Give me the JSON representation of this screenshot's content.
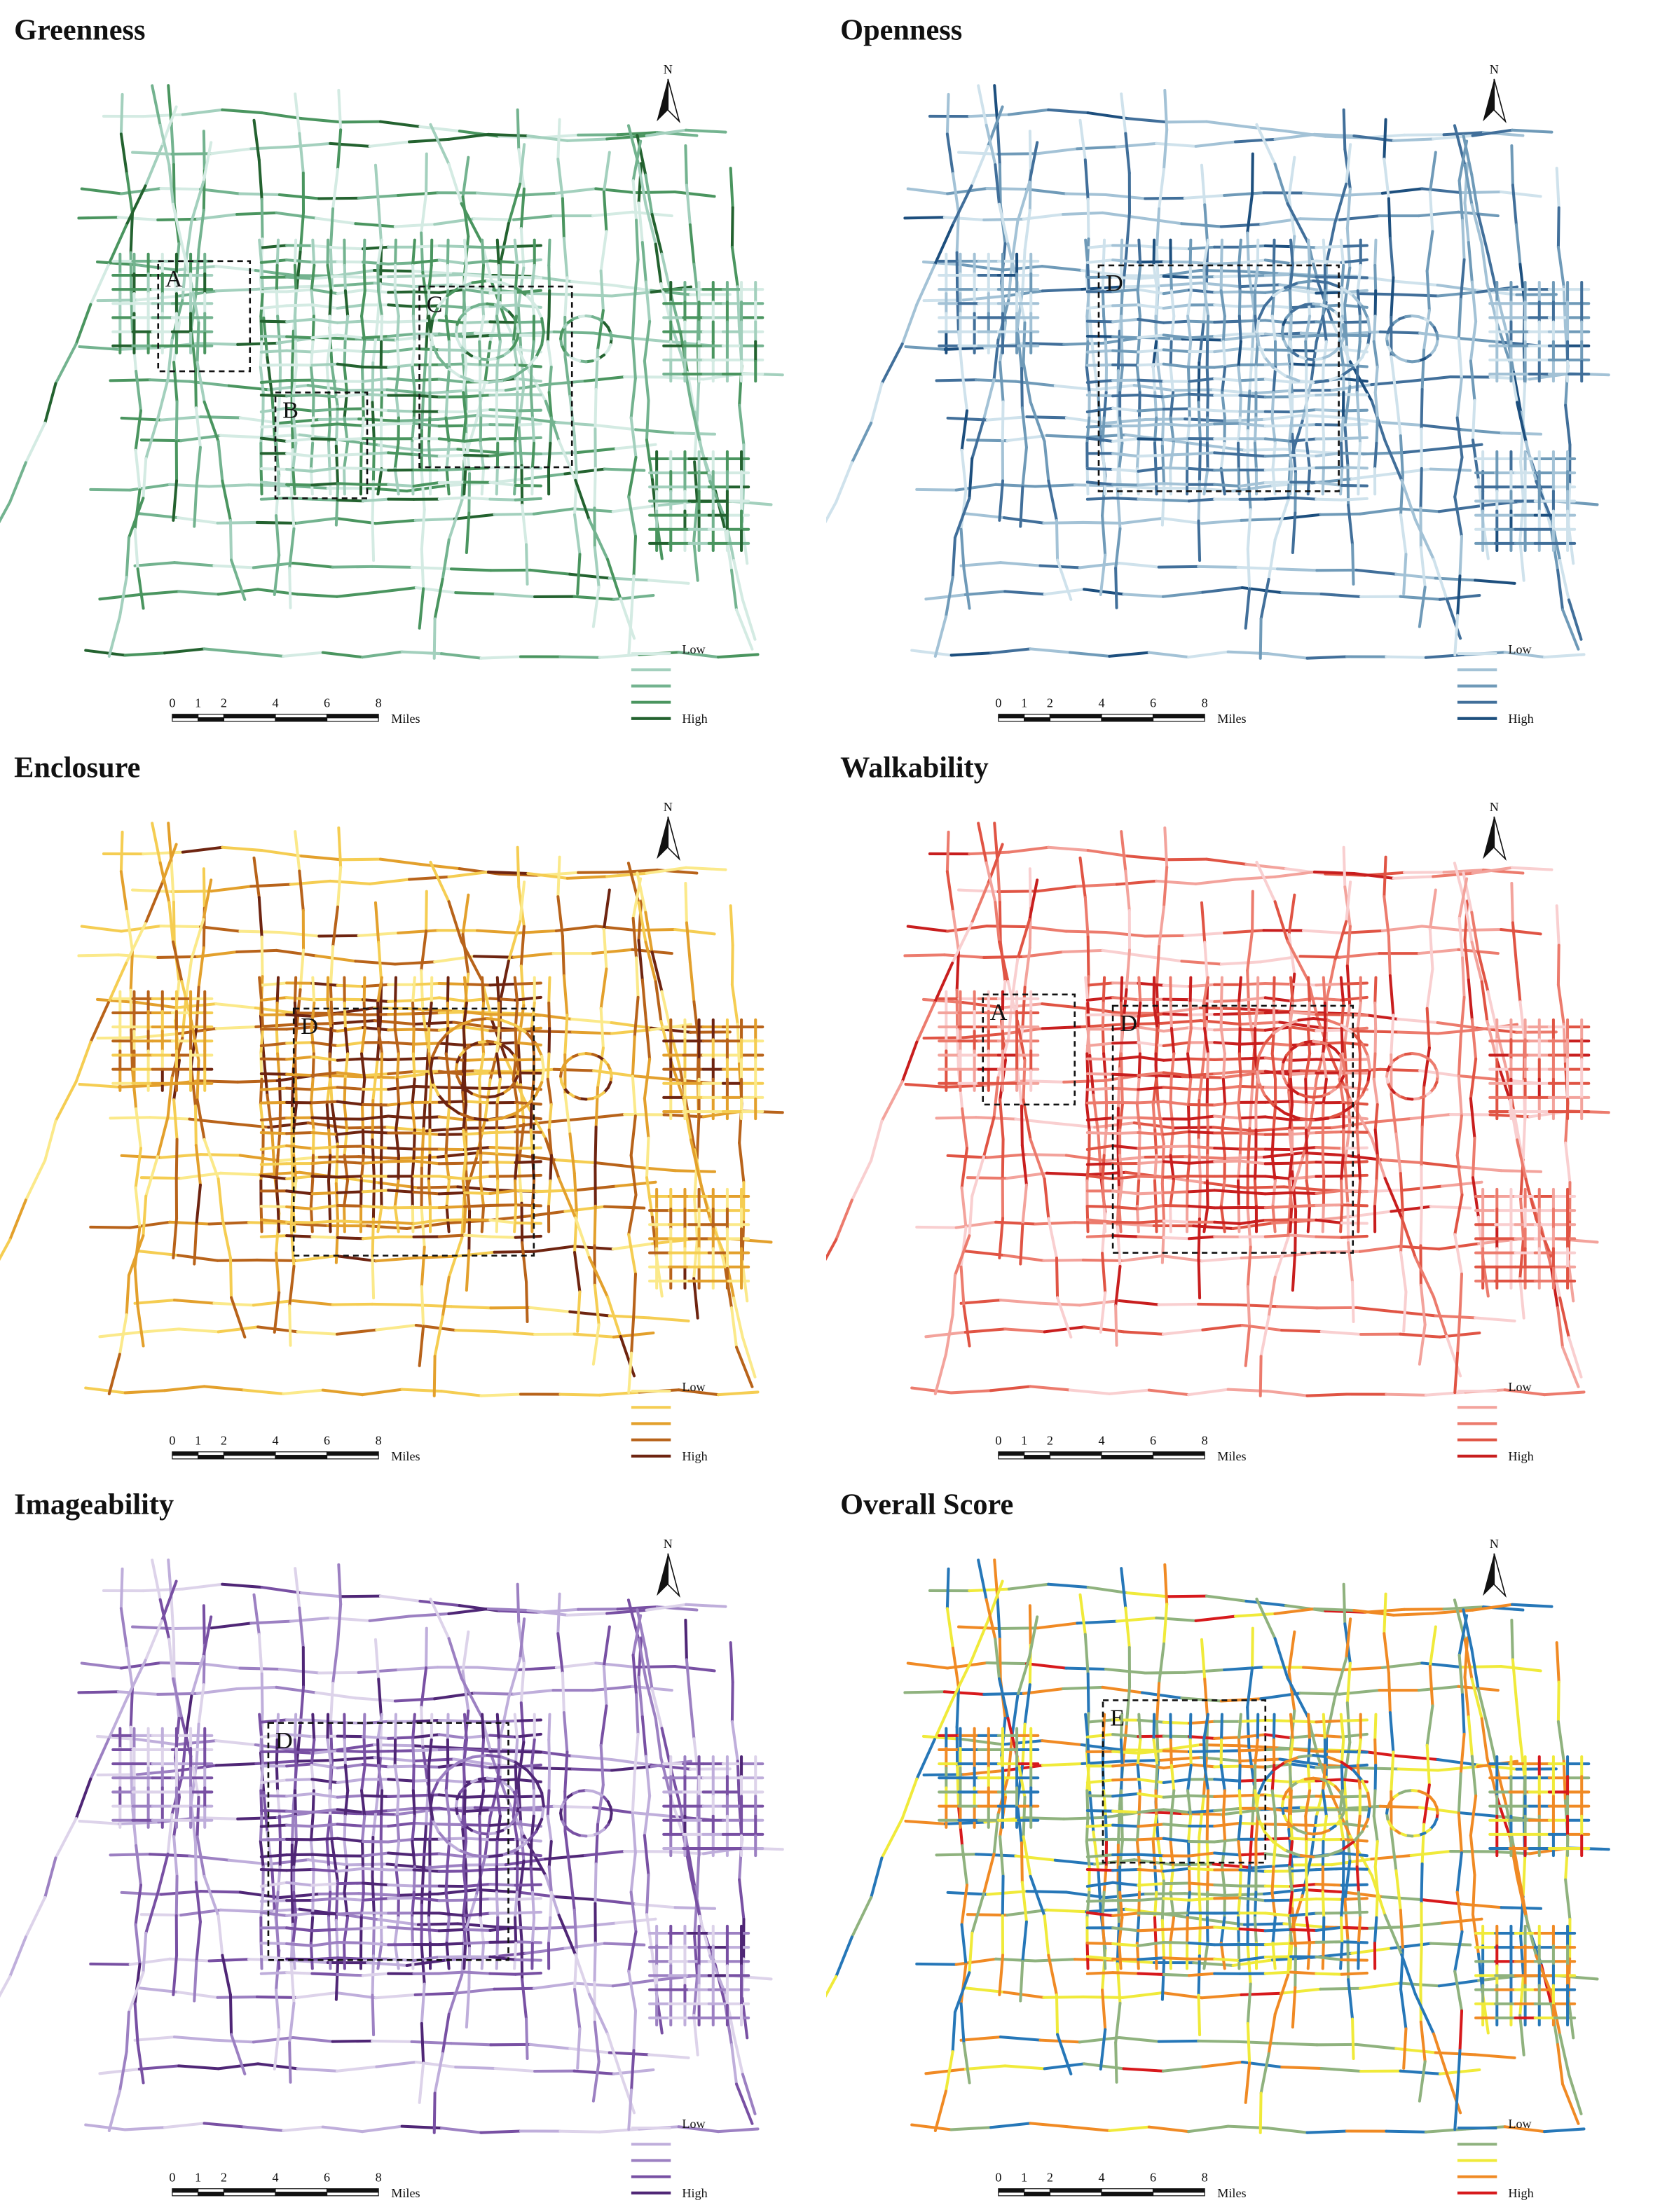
{
  "panels": [
    {
      "title": "Greenness",
      "north": "N",
      "boxes": [
        {
          "label": "A"
        },
        {
          "label": "B"
        },
        {
          "label": "C"
        }
      ],
      "legend": {
        "low": "Low",
        "high": "High",
        "colors": [
          "#d4ebe3",
          "#a3d0bd",
          "#73b38f",
          "#4a955f",
          "#23622f"
        ]
      },
      "scale": {
        "ticks": [
          0,
          1,
          2,
          4,
          6,
          8
        ],
        "unit": "Miles"
      }
    },
    {
      "title": "Openness",
      "north": "N",
      "boxes": [
        {
          "label": "D"
        }
      ],
      "legend": {
        "low": "Low",
        "high": "High",
        "colors": [
          "#cfe2ec",
          "#a3c2d6",
          "#6f9ab8",
          "#416f9a",
          "#1d4f7e"
        ]
      },
      "scale": {
        "ticks": [
          0,
          1,
          2,
          4,
          6,
          8
        ],
        "unit": "Miles"
      }
    },
    {
      "title": "Enclosure",
      "north": "N",
      "boxes": [
        {
          "label": "D"
        }
      ],
      "legend": {
        "low": "Low",
        "high": "High",
        "colors": [
          "#fbe98a",
          "#f5cd52",
          "#e3a02c",
          "#b8631a",
          "#6e2410"
        ]
      },
      "scale": {
        "ticks": [
          0,
          1,
          2,
          4,
          6,
          8
        ],
        "unit": "Miles"
      }
    },
    {
      "title": "Walkability",
      "north": "N",
      "boxes": [
        {
          "label": "A"
        },
        {
          "label": "D"
        }
      ],
      "legend": {
        "low": "Low",
        "high": "High",
        "colors": [
          "#f9cfd0",
          "#f3a39c",
          "#ec7b6d",
          "#e05444",
          "#c81e1e"
        ]
      },
      "scale": {
        "ticks": [
          0,
          1,
          2,
          4,
          6,
          8
        ],
        "unit": "Miles"
      }
    },
    {
      "title": "Imageability",
      "north": "N",
      "boxes": [
        {
          "label": "D"
        }
      ],
      "legend": {
        "low": "Low",
        "high": "High",
        "colors": [
          "#ddd3ea",
          "#bfaedb",
          "#9c80c2",
          "#7850a3",
          "#4f2676"
        ]
      },
      "scale": {
        "ticks": [
          0,
          1,
          2,
          4,
          6,
          8
        ],
        "unit": "Miles"
      }
    },
    {
      "title": "Overall Score",
      "north": "N",
      "boxes": [
        {
          "label": "E"
        }
      ],
      "legend": {
        "low": "Low",
        "high": "High",
        "colors": [
          "#2677b8",
          "#8fb27e",
          "#f0ea3a",
          "#f08a24",
          "#d7191c"
        ]
      },
      "scale": {
        "ticks": [
          0,
          1,
          2,
          4,
          6,
          8
        ],
        "unit": "Miles"
      }
    }
  ]
}
